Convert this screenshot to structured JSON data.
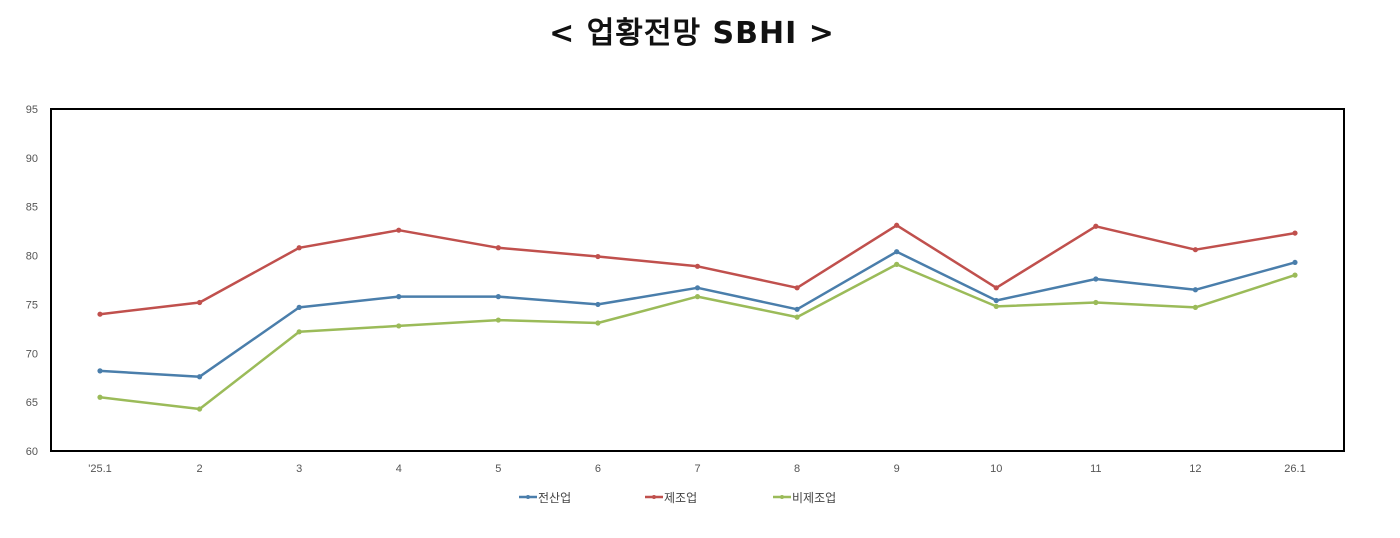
{
  "title": "< 업황전망 SBHI >",
  "colors": {
    "전산업": "#4a7eab",
    "제조업": "#c0504d",
    "비제조업": "#9bbb59",
    "axis": "#000000"
  },
  "chart_data": {
    "type": "line",
    "title": "< 업황전망 SBHI >",
    "xlabel": "",
    "ylabel": "",
    "ylim": [
      60,
      95
    ],
    "yticks": [
      60,
      65,
      70,
      75,
      80,
      85,
      90,
      95
    ],
    "grid": false,
    "legend_position": "bottom",
    "categories": [
      "'25.1",
      "2",
      "3",
      "4",
      "5",
      "6",
      "7",
      "8",
      "9",
      "10",
      "11",
      "12",
      "26.1"
    ],
    "series": [
      {
        "name": "전산업",
        "color": "#4a7eab",
        "values": [
          68.2,
          67.6,
          74.7,
          75.8,
          75.8,
          75.0,
          76.7,
          74.5,
          80.4,
          75.4,
          77.6,
          76.5,
          79.3
        ]
      },
      {
        "name": "제조업",
        "color": "#c0504d",
        "values": [
          74.0,
          75.2,
          80.8,
          82.6,
          80.8,
          79.9,
          78.9,
          76.7,
          83.1,
          76.7,
          83.0,
          80.6,
          82.3
        ]
      },
      {
        "name": "비제조업",
        "color": "#9bbb59",
        "values": [
          65.5,
          64.3,
          72.2,
          72.8,
          73.4,
          73.1,
          75.8,
          73.7,
          79.1,
          74.8,
          75.2,
          74.7,
          78.0
        ]
      }
    ]
  }
}
